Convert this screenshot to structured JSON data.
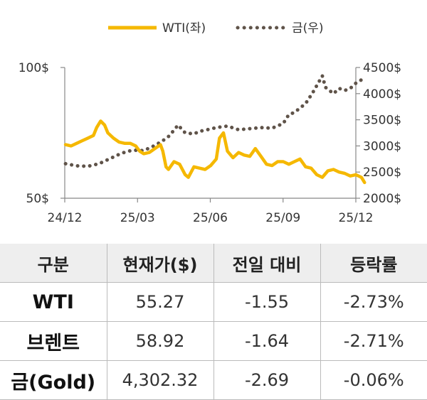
{
  "legend": {
    "wti": "WTI(좌)",
    "gold": "금(우)"
  },
  "colors": {
    "wti": "#F5B800",
    "gold": "#5F5349",
    "axis": "#888888"
  },
  "chart_data": {
    "type": "line",
    "x_ticks": [
      "24/12",
      "25/03",
      "25/06",
      "25/09",
      "25/12"
    ],
    "y_left": {
      "ticks": [
        "100$",
        "50$"
      ],
      "ylim": [
        50,
        100
      ]
    },
    "y_right": {
      "ticks": [
        "4500$",
        "4000$",
        "3500$",
        "3000$",
        "2500$",
        "2000$"
      ],
      "ylim": [
        2000,
        4500
      ]
    },
    "series": [
      {
        "name": "WTI(좌)",
        "axis": "left",
        "style": "solid",
        "points": [
          [
            "2024-12-02",
            70.5
          ],
          [
            "2024-12-09",
            70
          ],
          [
            "2024-12-16",
            71
          ],
          [
            "2024-12-23",
            72
          ],
          [
            "2024-12-30",
            73
          ],
          [
            "2025-01-06",
            74
          ],
          [
            "2025-01-10",
            77
          ],
          [
            "2025-01-15",
            79.5
          ],
          [
            "2025-01-20",
            78
          ],
          [
            "2025-01-24",
            75
          ],
          [
            "2025-01-31",
            73
          ],
          [
            "2025-02-07",
            71.5
          ],
          [
            "2025-02-14",
            71
          ],
          [
            "2025-02-21",
            71
          ],
          [
            "2025-02-28",
            70
          ],
          [
            "2025-03-05",
            68
          ],
          [
            "2025-03-10",
            67
          ],
          [
            "2025-03-17",
            67.5
          ],
          [
            "2025-03-24",
            69
          ],
          [
            "2025-03-31",
            70.5
          ],
          [
            "2025-04-03",
            68
          ],
          [
            "2025-04-07",
            62
          ],
          [
            "2025-04-10",
            61
          ],
          [
            "2025-04-17",
            64
          ],
          [
            "2025-04-24",
            63
          ],
          [
            "2025-05-01",
            59
          ],
          [
            "2025-05-05",
            58
          ],
          [
            "2025-05-12",
            62
          ],
          [
            "2025-05-19",
            61.5
          ],
          [
            "2025-05-26",
            61
          ],
          [
            "2025-06-02",
            62.5
          ],
          [
            "2025-06-09",
            65
          ],
          [
            "2025-06-13",
            73
          ],
          [
            "2025-06-18",
            75
          ],
          [
            "2025-06-23",
            68
          ],
          [
            "2025-06-30",
            65.5
          ],
          [
            "2025-07-07",
            67.5
          ],
          [
            "2025-07-14",
            66.5
          ],
          [
            "2025-07-21",
            66
          ],
          [
            "2025-07-28",
            69
          ],
          [
            "2025-08-04",
            66
          ],
          [
            "2025-08-11",
            63
          ],
          [
            "2025-08-18",
            62.5
          ],
          [
            "2025-08-25",
            64
          ],
          [
            "2025-09-01",
            64
          ],
          [
            "2025-09-08",
            63
          ],
          [
            "2025-09-15",
            64
          ],
          [
            "2025-09-22",
            65
          ],
          [
            "2025-09-29",
            62
          ],
          [
            "2025-10-06",
            61.5
          ],
          [
            "2025-10-13",
            59
          ],
          [
            "2025-10-20",
            58
          ],
          [
            "2025-10-27",
            60.5
          ],
          [
            "2025-11-03",
            61
          ],
          [
            "2025-11-10",
            60
          ],
          [
            "2025-11-17",
            59.5
          ],
          [
            "2025-11-24",
            58.5
          ],
          [
            "2025-12-01",
            59
          ],
          [
            "2025-12-08",
            58
          ],
          [
            "2025-12-12",
            56
          ]
        ]
      },
      {
        "name": "금(우)",
        "axis": "right",
        "style": "dotted",
        "points": [
          [
            "2024-12-02",
            2660
          ],
          [
            "2024-12-16",
            2620
          ],
          [
            "2024-12-30",
            2610
          ],
          [
            "2025-01-13",
            2660
          ],
          [
            "2025-01-27",
            2760
          ],
          [
            "2025-02-10",
            2860
          ],
          [
            "2025-02-24",
            2920
          ],
          [
            "2025-03-10",
            2910
          ],
          [
            "2025-03-24",
            3010
          ],
          [
            "2025-04-03",
            3100
          ],
          [
            "2025-04-10",
            3180
          ],
          [
            "2025-04-17",
            3300
          ],
          [
            "2025-04-22",
            3400
          ],
          [
            "2025-05-01",
            3250
          ],
          [
            "2025-05-12",
            3230
          ],
          [
            "2025-05-19",
            3280
          ],
          [
            "2025-05-26",
            3300
          ],
          [
            "2025-06-09",
            3350
          ],
          [
            "2025-06-23",
            3380
          ],
          [
            "2025-07-07",
            3310
          ],
          [
            "2025-07-21",
            3330
          ],
          [
            "2025-08-04",
            3350
          ],
          [
            "2025-08-18",
            3340
          ],
          [
            "2025-09-01",
            3430
          ],
          [
            "2025-09-08",
            3600
          ],
          [
            "2025-09-15",
            3640
          ],
          [
            "2025-09-29",
            3810
          ],
          [
            "2025-10-08",
            4020
          ],
          [
            "2025-10-20",
            4340
          ],
          [
            "2025-10-24",
            4120
          ],
          [
            "2025-11-03",
            4000
          ],
          [
            "2025-11-10",
            4100
          ],
          [
            "2025-11-17",
            4060
          ],
          [
            "2025-11-24",
            4100
          ],
          [
            "2025-12-01",
            4200
          ],
          [
            "2025-12-12",
            4300
          ]
        ]
      }
    ]
  },
  "table": {
    "headers": [
      "구분",
      "현재가($)",
      "전일 대비",
      "등락률"
    ],
    "rows": [
      [
        "WTI",
        "55.27",
        "-1.55",
        "-2.73%"
      ],
      [
        "브렌트",
        "58.92",
        "-1.64",
        "-2.71%"
      ],
      [
        "금(Gold)",
        "4,302.32",
        "-2.69",
        "-0.06%"
      ]
    ]
  }
}
